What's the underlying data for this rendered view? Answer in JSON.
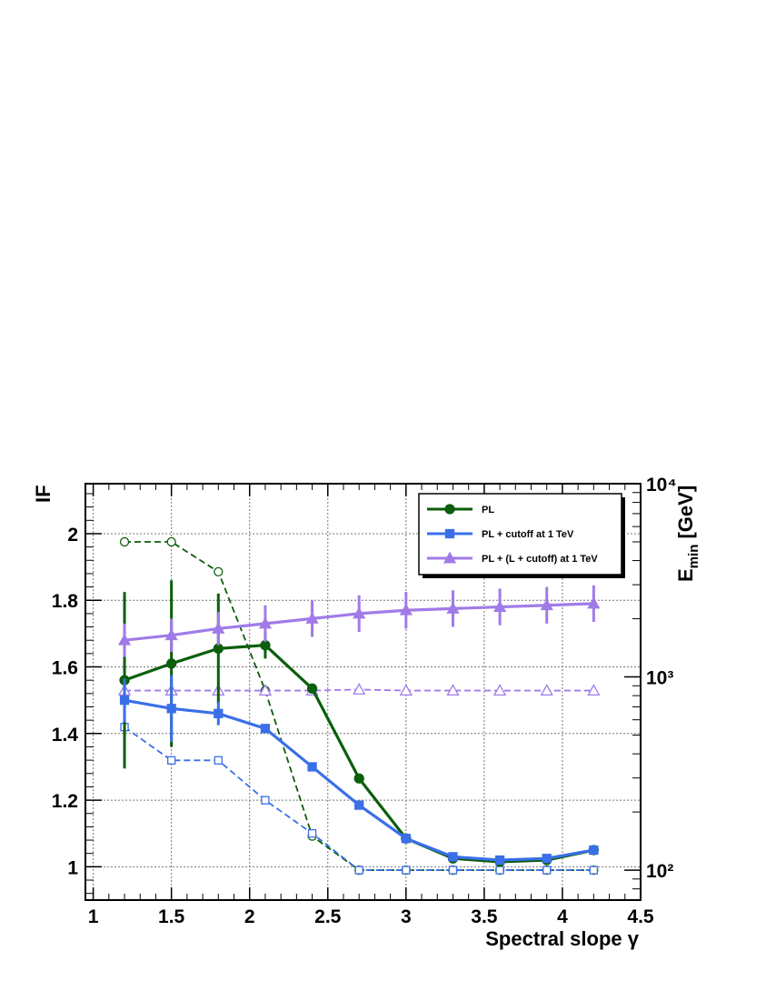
{
  "chart_data": {
    "type": "line",
    "xlabel": "Spectral slope γ",
    "ylabel": "IF",
    "ylabel_right": "E_min [GeV]",
    "xlim": [
      0.95,
      4.5
    ],
    "ylim": [
      0.9,
      2.15
    ],
    "y2lim_log": [
      70,
      10000
    ],
    "x_ticks": [
      "1",
      "1.5",
      "2",
      "2.5",
      "3",
      "3.5",
      "4",
      "4.5"
    ],
    "y_ticks": [
      "1",
      "1.2",
      "1.4",
      "1.6",
      "1.8",
      "2"
    ],
    "y2_ticks": [
      "10²",
      "10³",
      "10⁴"
    ],
    "grid": true,
    "legend_position": "top-right",
    "x": [
      1.2,
      1.5,
      1.8,
      2.1,
      2.4,
      2.7,
      3.0,
      3.3,
      3.6,
      3.9,
      4.2
    ],
    "series": [
      {
        "name": "PL",
        "color": "#0b5e0b",
        "marker": "circle",
        "axis": "left",
        "values": [
          1.56,
          1.61,
          1.655,
          1.665,
          1.535,
          1.265,
          1.085,
          1.025,
          1.015,
          1.02,
          1.05
        ],
        "errors": [
          0.265,
          0.25,
          0.165,
          0.04,
          0,
          0,
          0,
          0,
          0,
          0,
          0
        ]
      },
      {
        "name": "PL + cutoff at 1 TeV",
        "color": "#3a6fe8",
        "marker": "square",
        "axis": "left",
        "values": [
          1.5,
          1.475,
          1.46,
          1.415,
          1.3,
          1.185,
          1.085,
          1.03,
          1.02,
          1.025,
          1.05
        ],
        "errors": [
          0.065,
          0.1,
          0.035,
          0,
          0,
          0,
          0,
          0,
          0,
          0,
          0
        ]
      },
      {
        "name": "PL + (L + cutoff) at 1 TeV",
        "color": "#a07be8",
        "marker": "triangle",
        "axis": "left",
        "values": [
          1.68,
          1.695,
          1.715,
          1.73,
          1.745,
          1.76,
          1.77,
          1.775,
          1.78,
          1.785,
          1.79
        ],
        "errors": [
          0.05,
          0.05,
          0.05,
          0.055,
          0.055,
          0.055,
          0.055,
          0.055,
          0.055,
          0.055,
          0.055
        ]
      }
    ],
    "series_emin": [
      {
        "ref": "PL",
        "color": "#0b5e0b",
        "marker": "open-circle",
        "values": [
          5000,
          5000,
          3500,
          850,
          150,
          100,
          100,
          100,
          100,
          100,
          100
        ]
      },
      {
        "ref": "PL + cutoff at 1 TeV",
        "color": "#3a6fe8",
        "marker": "open-square",
        "values": [
          550,
          370,
          370,
          230,
          155,
          100,
          100,
          100,
          100,
          100,
          100
        ]
      },
      {
        "ref": "PL + (L + cutoff) at 1 TeV",
        "color": "#a07be8",
        "marker": "open-triangle",
        "values": [
          850,
          850,
          850,
          850,
          850,
          860,
          850,
          850,
          850,
          850,
          850
        ]
      }
    ]
  }
}
